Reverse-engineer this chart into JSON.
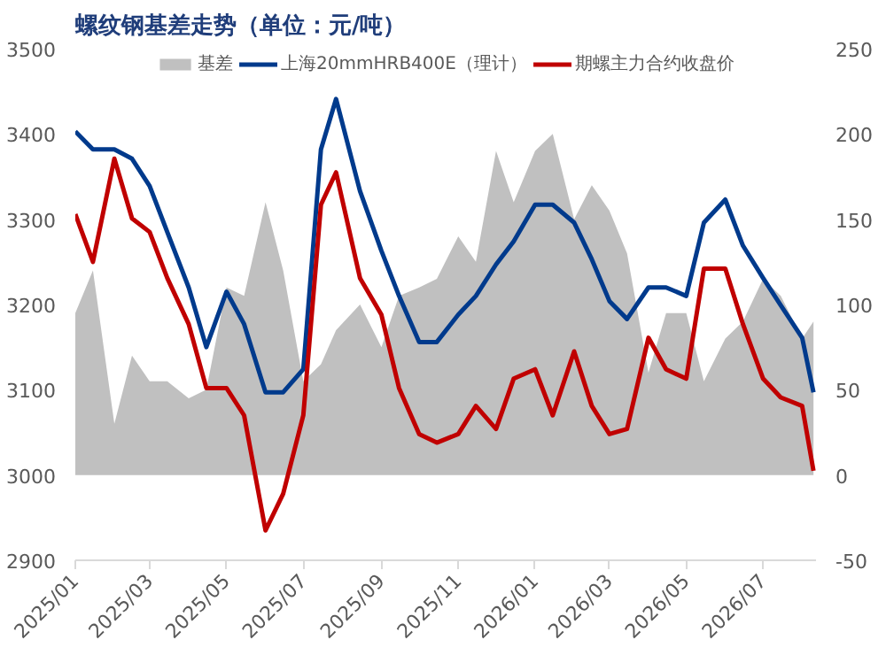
{
  "chart_data": {
    "type": "line",
    "title": "螺纹钢基差走势（单位：元/吨）",
    "x": [
      "2025-01-01",
      "2025-01-15",
      "2025-02-01",
      "2025-02-15",
      "2025-03-01",
      "2025-03-15",
      "2025-04-01",
      "2025-04-15",
      "2025-05-01",
      "2025-05-15",
      "2025-06-01",
      "2025-06-15",
      "2025-07-01",
      "2025-07-15",
      "2025-07-27",
      "2025-08-15",
      "2025-09-01",
      "2025-09-15",
      "2025-10-01",
      "2025-10-15",
      "2025-11-01",
      "2025-11-15",
      "2025-12-01",
      "2025-12-15",
      "2026-01-01",
      "2026-01-15",
      "2026-02-01",
      "2026-02-15",
      "2026-03-01",
      "2026-03-15",
      "2026-04-01",
      "2026-04-15",
      "2026-05-01",
      "2026-05-15",
      "2026-06-01",
      "2026-06-15",
      "2026-07-01",
      "2026-07-15",
      "2026-08-01",
      "2026-08-10"
    ],
    "series": [
      {
        "name": "基差",
        "type": "area",
        "axis": "y2",
        "color": "#c0c0c0",
        "values": [
          95,
          120,
          30,
          70,
          55,
          55,
          45,
          50,
          110,
          105,
          160,
          120,
          55,
          65,
          85,
          100,
          75,
          105,
          110,
          115,
          140,
          125,
          190,
          160,
          190,
          200,
          150,
          170,
          155,
          130,
          60,
          95,
          95,
          55,
          80,
          90,
          115,
          105,
          80,
          90
        ]
      },
      {
        "name": "上海20mmHRB400E（理计）",
        "color": "#003a8c",
        "values": [
          3403,
          3382,
          3382,
          3371,
          3339,
          3285,
          3220,
          3150,
          3215,
          3177,
          3097,
          3097,
          3124,
          3382,
          3441,
          3333,
          3263,
          3210,
          3156,
          3156,
          3188,
          3210,
          3247,
          3274,
          3317,
          3317,
          3296,
          3253,
          3204,
          3183,
          3220,
          3220,
          3210,
          3296,
          3323,
          3269,
          3231,
          3199,
          3161,
          3097
        ]
      },
      {
        "name": "期螺主力合约收盘价",
        "color": "#c00000",
        "values": [
          3306,
          3250,
          3371,
          3301,
          3285,
          3231,
          3177,
          3102,
          3102,
          3070,
          2935,
          2978,
          3070,
          3317,
          3355,
          3231,
          3188,
          3102,
          3048,
          3038,
          3048,
          3081,
          3054,
          3113,
          3124,
          3070,
          3145,
          3081,
          3048,
          3054,
          3161,
          3124,
          3113,
          3242,
          3242,
          3177,
          3113,
          3091,
          3081,
          3005
        ]
      }
    ],
    "xlim": [
      "2025-01-01",
      "2026-08-12"
    ],
    "xticks": [
      {
        "value": "2025-01",
        "label": "2025/01"
      },
      {
        "value": "2025-03",
        "label": "2025/03"
      },
      {
        "value": "2025-05",
        "label": "2025/05"
      },
      {
        "value": "2025-07",
        "label": "2025/07"
      },
      {
        "value": "2025-09",
        "label": "2025/09"
      },
      {
        "value": "2025-11",
        "label": "2025/11"
      },
      {
        "value": "2026-01",
        "label": "2026/01"
      },
      {
        "value": "2026-03",
        "label": "2026/03"
      },
      {
        "value": "2026-05",
        "label": "2026/05"
      },
      {
        "value": "2026-07",
        "label": "2026/07"
      }
    ],
    "ylim": [
      2900,
      3500
    ],
    "yticks": [
      2900,
      3000,
      3100,
      3200,
      3300,
      3400,
      3500
    ],
    "y2lim": [
      -50,
      250
    ],
    "y2ticks": [
      -50,
      0,
      50,
      100,
      150,
      200,
      250
    ],
    "legend": "top"
  }
}
